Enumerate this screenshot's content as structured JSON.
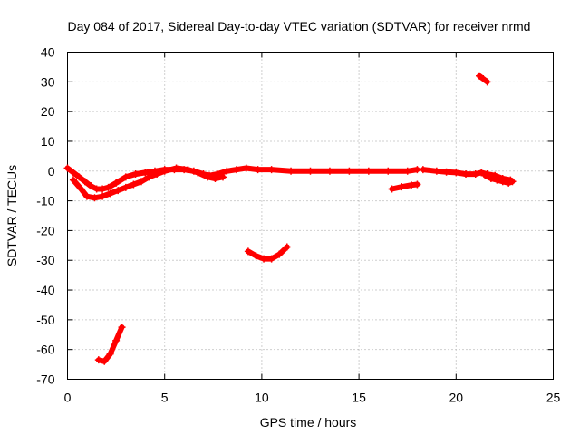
{
  "chart_data": {
    "type": "line",
    "title": "Day 084 of 2017, Sidereal Day-to-day VTEC variation (SDTVAR) for receiver nrmd",
    "xlabel": "GPS time / hours",
    "ylabel": "SDTVAR / TECUs",
    "xlim": [
      0,
      25
    ],
    "ylim": [
      -70,
      40
    ],
    "xticks": [
      0,
      5,
      10,
      15,
      20,
      25
    ],
    "yticks": [
      -70,
      -60,
      -50,
      -40,
      -30,
      -20,
      -10,
      0,
      10,
      20,
      30,
      40
    ],
    "grid": true,
    "color": "#ff0000",
    "series": [
      {
        "name": "main-trace-a",
        "x": [
          0,
          0.3,
          0.6,
          0.9,
          1.2,
          1.5,
          1.8,
          2.1,
          2.5,
          3.0,
          3.5,
          4.0,
          4.5,
          5.0,
          5.5,
          6.0,
          6.5,
          7.0,
          7.3,
          7.7,
          8.2,
          8.7,
          9.2,
          9.8,
          10.5,
          11.5,
          12.5,
          13.5,
          14.5,
          15.5,
          16.5,
          17.5,
          18.0
        ],
        "y": [
          1,
          -0.5,
          -2,
          -3.5,
          -5,
          -6,
          -6,
          -5.5,
          -4,
          -2,
          -1,
          -0.5,
          0,
          0.5,
          0.5,
          0.5,
          0,
          -1,
          -1.5,
          -1,
          0,
          0.5,
          1,
          0.5,
          0.5,
          0,
          0,
          0,
          0,
          0,
          0,
          0,
          0.5
        ]
      },
      {
        "name": "main-trace-b",
        "x": [
          0.3,
          0.7,
          1.0,
          1.4,
          1.8,
          2.2,
          2.6,
          3.0,
          3.4,
          3.8,
          4.2,
          4.6,
          5.0,
          5.6,
          6.2,
          6.7,
          7.2,
          7.6,
          8.0
        ],
        "y": [
          -3,
          -6,
          -8.5,
          -9,
          -8.5,
          -7.5,
          -6.5,
          -5.5,
          -4.5,
          -3.5,
          -2,
          -1,
          0,
          1,
          0.5,
          -0.5,
          -2,
          -2.5,
          -2
        ]
      },
      {
        "name": "late-trace",
        "x": [
          18.3,
          19.0,
          19.5,
          20.0,
          20.5,
          21.0,
          21.3,
          21.6,
          22.0,
          22.4,
          22.8
        ],
        "y": [
          0.5,
          0,
          -0.3,
          -0.5,
          -1,
          -1,
          -0.5,
          -1,
          -1.5,
          -2.5,
          -3
        ]
      },
      {
        "name": "end-cluster",
        "x": [
          21.5,
          21.8,
          22.1,
          22.4,
          22.7,
          22.9
        ],
        "y": [
          -1.5,
          -2.5,
          -3,
          -3.5,
          -4,
          -3.5
        ]
      },
      {
        "name": "mid-negative-arc",
        "x": [
          9.3,
          9.7,
          10.1,
          10.5,
          10.9,
          11.3
        ],
        "y": [
          -27,
          -28.5,
          -29.5,
          -29.5,
          -28,
          -25.5
        ]
      },
      {
        "name": "early-steep-arc",
        "x": [
          1.6,
          1.9,
          2.2,
          2.5,
          2.8
        ],
        "y": [
          -63.5,
          -64,
          -61.5,
          -57,
          -52.5
        ]
      },
      {
        "name": "late-negative-segment",
        "x": [
          16.7,
          17.2,
          17.7,
          18.0
        ],
        "y": [
          -6,
          -5.3,
          -4.7,
          -4.5
        ]
      },
      {
        "name": "late-positive-segment",
        "x": [
          21.2,
          21.4,
          21.6
        ],
        "y": [
          32,
          31,
          30
        ]
      }
    ]
  }
}
